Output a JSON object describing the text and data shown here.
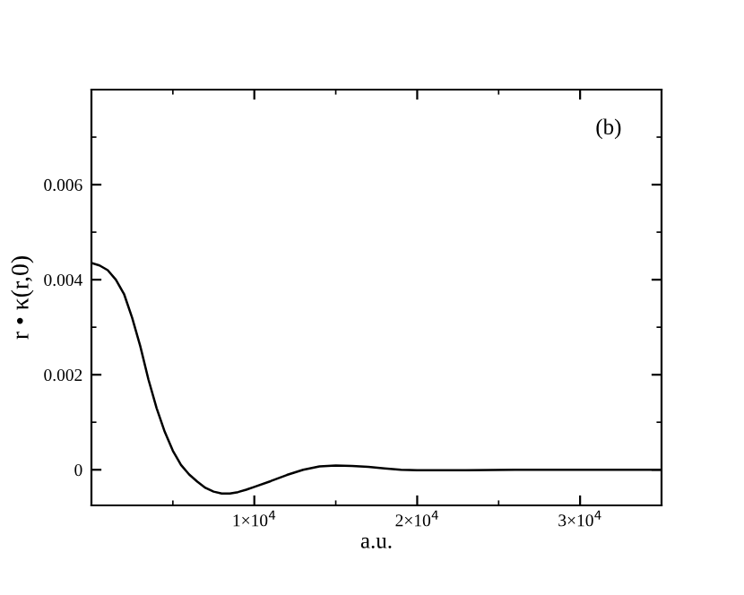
{
  "chart_data": {
    "type": "line",
    "xlabel": "a.u.",
    "ylabel": "r • κ(r,0)",
    "annotations": [
      "(b)"
    ],
    "x": [
      0,
      500,
      1000,
      1500,
      2000,
      2500,
      3000,
      3500,
      4000,
      4500,
      5000,
      5500,
      6000,
      6500,
      7000,
      7500,
      8000,
      8500,
      9000,
      9500,
      10000,
      11000,
      12000,
      13000,
      14000,
      15000,
      16000,
      17000,
      18000,
      19000,
      20000,
      21000,
      23000,
      26000,
      30000,
      35000
    ],
    "series": [
      {
        "color": "#000000",
        "values": [
          0.00435,
          0.0043,
          0.0042,
          0.004,
          0.0037,
          0.0032,
          0.0026,
          0.0019,
          0.0013,
          0.0008,
          0.0004,
          0.0001,
          -0.0001,
          -0.00025,
          -0.00038,
          -0.00046,
          -0.0005,
          -0.0005,
          -0.00047,
          -0.00042,
          -0.00036,
          -0.00024,
          -0.00011,
          0.0,
          7e-05,
          9e-05,
          8e-05,
          6e-05,
          3e-05,
          0.0,
          -1e-05,
          -1e-05,
          -1e-05,
          0.0,
          0.0,
          0.0
        ]
      }
    ],
    "xlim": [
      0,
      35000
    ],
    "ylim": [
      -0.00075,
      0.008
    ],
    "xticks": [
      {
        "value": 5000,
        "label": null
      },
      {
        "value": 10000,
        "label": "1×10$^{4}$"
      },
      {
        "value": 15000,
        "label": null
      },
      {
        "value": 20000,
        "label": "2×10$^{4}$"
      },
      {
        "value": 25000,
        "label": null
      },
      {
        "value": 30000,
        "label": "3×10$^{4}$"
      }
    ],
    "yticks": [
      0,
      {
        "value": 0.001,
        "label": null
      },
      0.002,
      {
        "value": 0.003,
        "label": null
      },
      0.004,
      {
        "value": 0.005,
        "label": null
      },
      0.006,
      {
        "value": 0.007,
        "label": null
      }
    ],
    "grid": false,
    "legend": false,
    "marker": "none",
    "line_style": "solid"
  }
}
